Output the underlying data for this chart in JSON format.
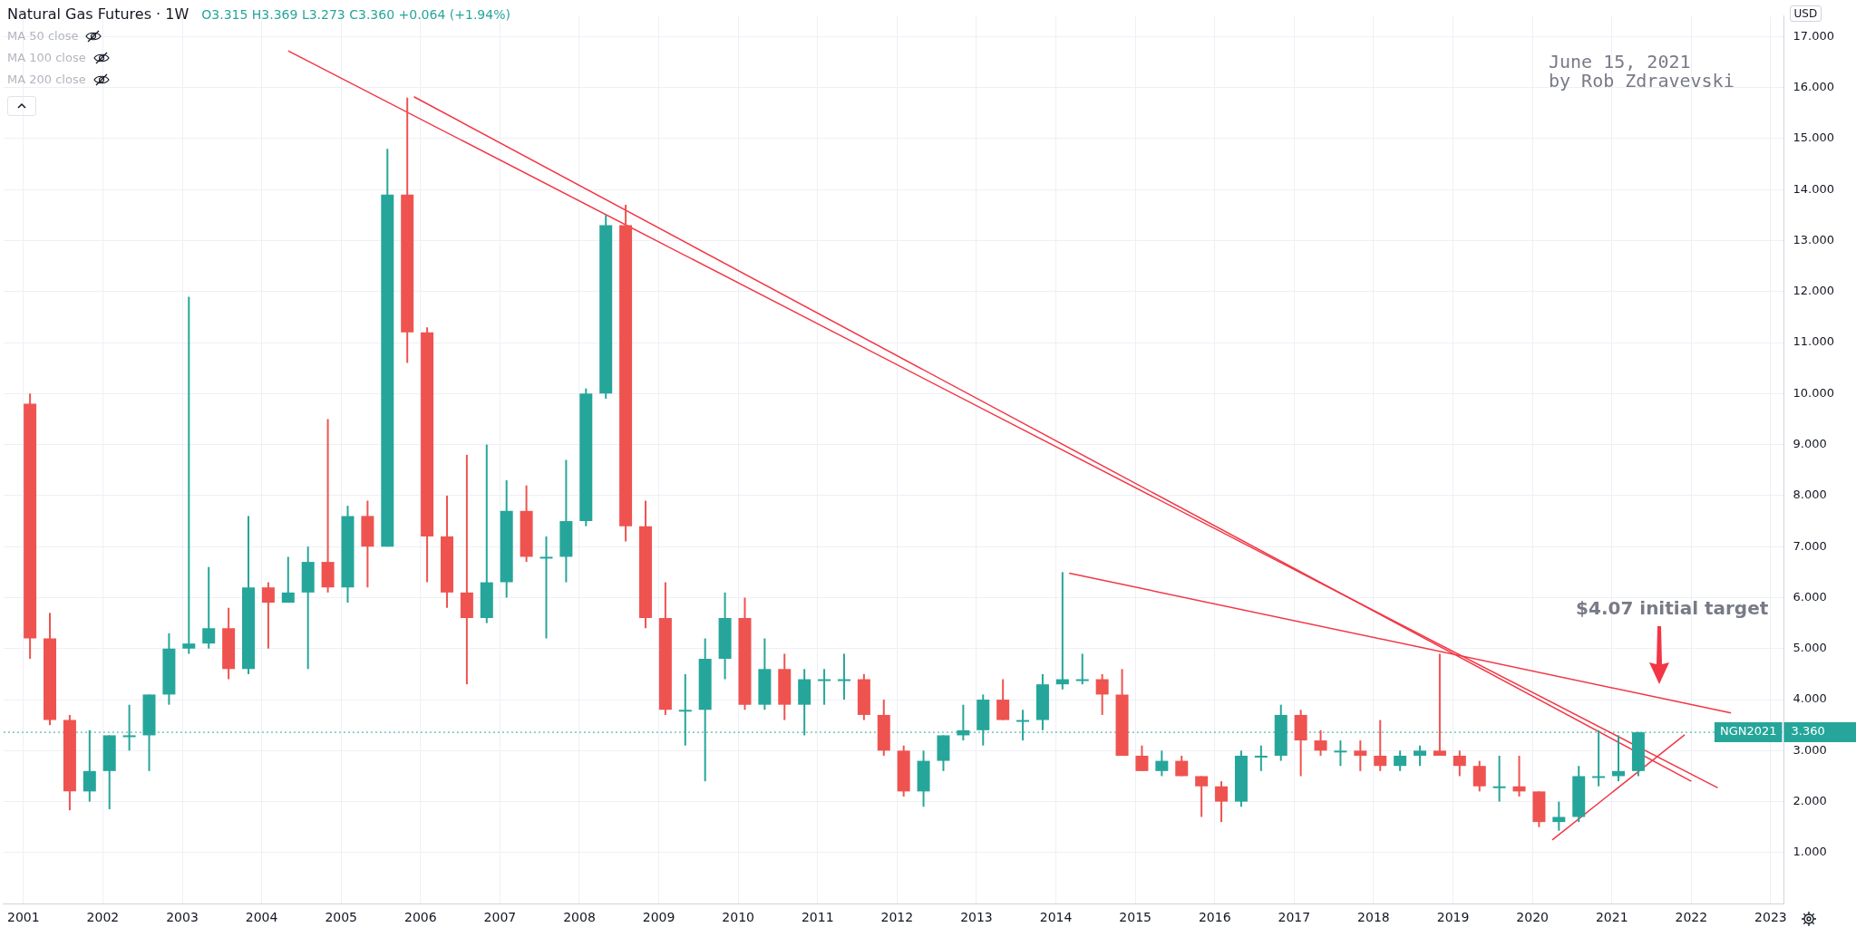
{
  "chart_data": {
    "type": "candlestick",
    "title": "Natural Gas Futures · 1W",
    "subtitle": "O3.315 H3.369 L3.273 C3.360 +0.064 (+1.94%)",
    "ylabel": "USD",
    "x": [
      "2001-02",
      "2001-05",
      "2001-08",
      "2001-11",
      "2002-02",
      "2002-05",
      "2002-08",
      "2002-11",
      "2003-02",
      "2003-05",
      "2003-08",
      "2003-11",
      "2004-02",
      "2004-05",
      "2004-08",
      "2004-11",
      "2005-02",
      "2005-05",
      "2005-08",
      "2005-11",
      "2006-02",
      "2006-05",
      "2006-08",
      "2006-11",
      "2007-02",
      "2007-05",
      "2007-08",
      "2007-11",
      "2008-02",
      "2008-05",
      "2008-08",
      "2008-11",
      "2009-02",
      "2009-05",
      "2009-08",
      "2009-11",
      "2010-02",
      "2010-05",
      "2010-08",
      "2010-11",
      "2011-02",
      "2011-05",
      "2011-08",
      "2011-11",
      "2012-02",
      "2012-05",
      "2012-08",
      "2012-11",
      "2013-02",
      "2013-05",
      "2013-08",
      "2013-11",
      "2014-02",
      "2014-05",
      "2014-08",
      "2014-11",
      "2015-02",
      "2015-05",
      "2015-08",
      "2015-11",
      "2016-02",
      "2016-05",
      "2016-08",
      "2016-11",
      "2017-02",
      "2017-05",
      "2017-08",
      "2017-11",
      "2018-02",
      "2018-05",
      "2018-08",
      "2018-11",
      "2019-02",
      "2019-05",
      "2019-08",
      "2019-11",
      "2020-02",
      "2020-05",
      "2020-08",
      "2020-11",
      "2021-02",
      "2021-05"
    ],
    "ohlc": [
      [
        9.8,
        10.0,
        4.8,
        5.2
      ],
      [
        5.2,
        5.7,
        3.5,
        3.6
      ],
      [
        3.6,
        3.7,
        1.83,
        2.2
      ],
      [
        2.2,
        3.4,
        2.0,
        2.6
      ],
      [
        2.6,
        3.3,
        1.85,
        3.3
      ],
      [
        3.3,
        3.9,
        3.0,
        3.3
      ],
      [
        3.3,
        4.1,
        2.6,
        4.1
      ],
      [
        4.1,
        5.3,
        3.9,
        5.0
      ],
      [
        5.0,
        11.9,
        4.9,
        5.1
      ],
      [
        5.1,
        6.6,
        5.0,
        5.4
      ],
      [
        5.4,
        5.8,
        4.4,
        4.6
      ],
      [
        4.6,
        7.6,
        4.5,
        6.2
      ],
      [
        6.2,
        6.3,
        5.0,
        5.9
      ],
      [
        5.9,
        6.8,
        5.9,
        6.1
      ],
      [
        6.1,
        7.0,
        4.6,
        6.7
      ],
      [
        6.7,
        9.5,
        6.1,
        6.2
      ],
      [
        6.2,
        7.8,
        5.9,
        7.6
      ],
      [
        7.6,
        7.9,
        6.2,
        7.0
      ],
      [
        7.0,
        14.8,
        7.0,
        13.9
      ],
      [
        13.9,
        15.8,
        10.6,
        11.2
      ],
      [
        11.2,
        11.3,
        6.3,
        7.2
      ],
      [
        7.2,
        8.0,
        5.8,
        6.1
      ],
      [
        6.1,
        8.8,
        4.3,
        5.6
      ],
      [
        5.6,
        9.0,
        5.5,
        6.3
      ],
      [
        6.3,
        8.3,
        6.0,
        7.7
      ],
      [
        7.7,
        8.2,
        6.7,
        6.8
      ],
      [
        6.8,
        7.2,
        5.2,
        6.8
      ],
      [
        6.8,
        8.7,
        6.3,
        7.5
      ],
      [
        7.5,
        10.1,
        7.4,
        10.0
      ],
      [
        10.0,
        13.5,
        9.9,
        13.3
      ],
      [
        13.3,
        13.7,
        7.1,
        7.4
      ],
      [
        7.4,
        7.9,
        5.4,
        5.6
      ],
      [
        5.6,
        6.3,
        3.7,
        3.8
      ],
      [
        3.8,
        4.5,
        3.1,
        3.8
      ],
      [
        3.8,
        5.2,
        2.4,
        4.8
      ],
      [
        4.8,
        6.1,
        4.4,
        5.6
      ],
      [
        5.6,
        6.0,
        3.8,
        3.9
      ],
      [
        3.9,
        5.2,
        3.8,
        4.6
      ],
      [
        4.6,
        4.9,
        3.6,
        3.9
      ],
      [
        3.9,
        4.6,
        3.3,
        4.4
      ],
      [
        4.4,
        4.6,
        3.9,
        4.4
      ],
      [
        4.4,
        4.9,
        4.0,
        4.4
      ],
      [
        4.4,
        4.5,
        3.6,
        3.7
      ],
      [
        3.7,
        4.0,
        2.9,
        3.0
      ],
      [
        3.0,
        3.1,
        2.1,
        2.2
      ],
      [
        2.2,
        3.0,
        1.9,
        2.8
      ],
      [
        2.8,
        3.3,
        2.6,
        3.3
      ],
      [
        3.3,
        3.9,
        3.2,
        3.4
      ],
      [
        3.4,
        4.1,
        3.1,
        4.0
      ],
      [
        4.0,
        4.4,
        3.6,
        3.6
      ],
      [
        3.6,
        3.8,
        3.2,
        3.6
      ],
      [
        3.6,
        4.5,
        3.4,
        4.3
      ],
      [
        4.3,
        6.5,
        4.2,
        4.4
      ],
      [
        4.4,
        4.9,
        4.3,
        4.4
      ],
      [
        4.4,
        4.5,
        3.7,
        4.1
      ],
      [
        4.1,
        4.6,
        2.9,
        2.9
      ],
      [
        2.9,
        3.1,
        2.6,
        2.6
      ],
      [
        2.6,
        3.0,
        2.5,
        2.8
      ],
      [
        2.8,
        2.9,
        2.5,
        2.5
      ],
      [
        2.5,
        2.5,
        1.7,
        2.3
      ],
      [
        2.3,
        2.4,
        1.6,
        2.0
      ],
      [
        2.0,
        3.0,
        1.9,
        2.9
      ],
      [
        2.9,
        3.1,
        2.6,
        2.9
      ],
      [
        2.9,
        3.9,
        2.8,
        3.7
      ],
      [
        3.7,
        3.8,
        2.5,
        3.2
      ],
      [
        3.2,
        3.4,
        2.9,
        3.0
      ],
      [
        3.0,
        3.2,
        2.7,
        3.0
      ],
      [
        3.0,
        3.2,
        2.6,
        2.9
      ],
      [
        2.9,
        3.6,
        2.6,
        2.7
      ],
      [
        2.7,
        3.0,
        2.6,
        2.9
      ],
      [
        2.9,
        3.1,
        2.7,
        3.0
      ],
      [
        3.0,
        4.9,
        2.9,
        2.9
      ],
      [
        2.9,
        3.0,
        2.5,
        2.7
      ],
      [
        2.7,
        2.8,
        2.2,
        2.3
      ],
      [
        2.3,
        2.9,
        2.0,
        2.3
      ],
      [
        2.3,
        2.9,
        2.1,
        2.2
      ],
      [
        2.2,
        2.2,
        1.5,
        1.6
      ],
      [
        1.6,
        2.0,
        1.43,
        1.7
      ],
      [
        1.7,
        2.7,
        1.6,
        2.5
      ],
      [
        2.5,
        3.4,
        2.3,
        2.5
      ],
      [
        2.5,
        3.3,
        2.4,
        2.6
      ],
      [
        2.6,
        3.37,
        2.5,
        3.36
      ]
    ],
    "colors": [
      "#ef5350",
      "#ef5350",
      "#ef5350",
      "#26a69a",
      "#26a69a",
      "#26a69a",
      "#26a69a",
      "#26a69a",
      "#26a69a",
      "#26a69a",
      "#ef5350",
      "#26a69a",
      "#ef5350",
      "#26a69a",
      "#26a69a",
      "#ef5350",
      "#26a69a",
      "#ef5350",
      "#26a69a",
      "#ef5350",
      "#ef5350",
      "#ef5350",
      "#ef5350",
      "#26a69a",
      "#26a69a",
      "#ef5350",
      "#26a69a",
      "#26a69a",
      "#26a69a",
      "#26a69a",
      "#ef5350",
      "#ef5350",
      "#ef5350",
      "#26a69a",
      "#26a69a",
      "#26a69a",
      "#ef5350",
      "#26a69a",
      "#ef5350",
      "#26a69a",
      "#26a69a",
      "#26a69a",
      "#ef5350",
      "#ef5350",
      "#ef5350",
      "#26a69a",
      "#26a69a",
      "#26a69a",
      "#26a69a",
      "#ef5350",
      "#26a69a",
      "#26a69a",
      "#26a69a",
      "#26a69a",
      "#ef5350",
      "#ef5350",
      "#ef5350",
      "#26a69a",
      "#ef5350",
      "#ef5350",
      "#ef5350",
      "#26a69a",
      "#26a69a",
      "#26a69a",
      "#ef5350",
      "#ef5350",
      "#26a69a",
      "#ef5350",
      "#ef5350",
      "#26a69a",
      "#26a69a",
      "#ef5350",
      "#ef5350",
      "#ef5350",
      "#26a69a",
      "#ef5350",
      "#ef5350",
      "#26a69a",
      "#26a69a",
      "#26a69a",
      "#26a69a",
      "#26a69a"
    ],
    "series": [
      {
        "type": "line",
        "color": "#f23645",
        "x": [
          "2004-05",
          "2022-05"
        ],
        "values": [
          16.72,
          2.27
        ]
      },
      {
        "type": "line",
        "color": "#f23645",
        "x": [
          "2005-12",
          "2022-01"
        ],
        "values": [
          15.82,
          2.4
        ]
      },
      {
        "type": "line",
        "color": "#f23645",
        "x": [
          "2014-03",
          "2022-07"
        ],
        "values": [
          6.48,
          3.74
        ]
      },
      {
        "type": "line",
        "color": "#f23645",
        "x": [
          "2020-04",
          "2021-12"
        ],
        "values": [
          1.25,
          3.31
        ]
      }
    ],
    "xlim": [
      "2000-10",
      "2023-03"
    ],
    "xticks": [
      "2001",
      "2002",
      "2003",
      "2004",
      "2005",
      "2006",
      "2007",
      "2008",
      "2009",
      "2010",
      "2011",
      "2012",
      "2013",
      "2014",
      "2015",
      "2016",
      "2017",
      "2018",
      "2019",
      "2020",
      "2021",
      "2022",
      "2023"
    ],
    "ylim": [
      0,
      17.4
    ],
    "yticks": [
      {
        "value": 1,
        "label": "1.000"
      },
      {
        "value": 2,
        "label": "2.000"
      },
      {
        "value": 3,
        "label": "3.000"
      },
      {
        "value": 4,
        "label": "4.000"
      },
      {
        "value": 5,
        "label": "5.000"
      },
      {
        "value": 6,
        "label": "6.000"
      },
      {
        "value": 7,
        "label": "7.000"
      },
      {
        "value": 8,
        "label": "8.000"
      },
      {
        "value": 9,
        "label": "9.000"
      },
      {
        "value": 10,
        "label": "10.000"
      },
      {
        "value": 11,
        "label": "11.000"
      },
      {
        "value": 12,
        "label": "12.000"
      },
      {
        "value": 13,
        "label": "13.000"
      },
      {
        "value": 14,
        "label": "14.000"
      },
      {
        "value": 15,
        "label": "15.000"
      },
      {
        "value": 16,
        "label": "16.000"
      },
      {
        "value": 17,
        "label": "17.000"
      }
    ],
    "ref_lines": [
      {
        "axis": "y",
        "value": 3.36,
        "label": "NGN2021 3.360",
        "color": "#26a69a",
        "line_style": "dotted"
      }
    ],
    "annotations": [
      "MA 50 close",
      "MA 100 close",
      "MA 200 close",
      "June 15, 2021",
      "by Rob Zdravevski",
      "$4.07 initial target"
    ],
    "grid": true,
    "legend": false
  }
}
